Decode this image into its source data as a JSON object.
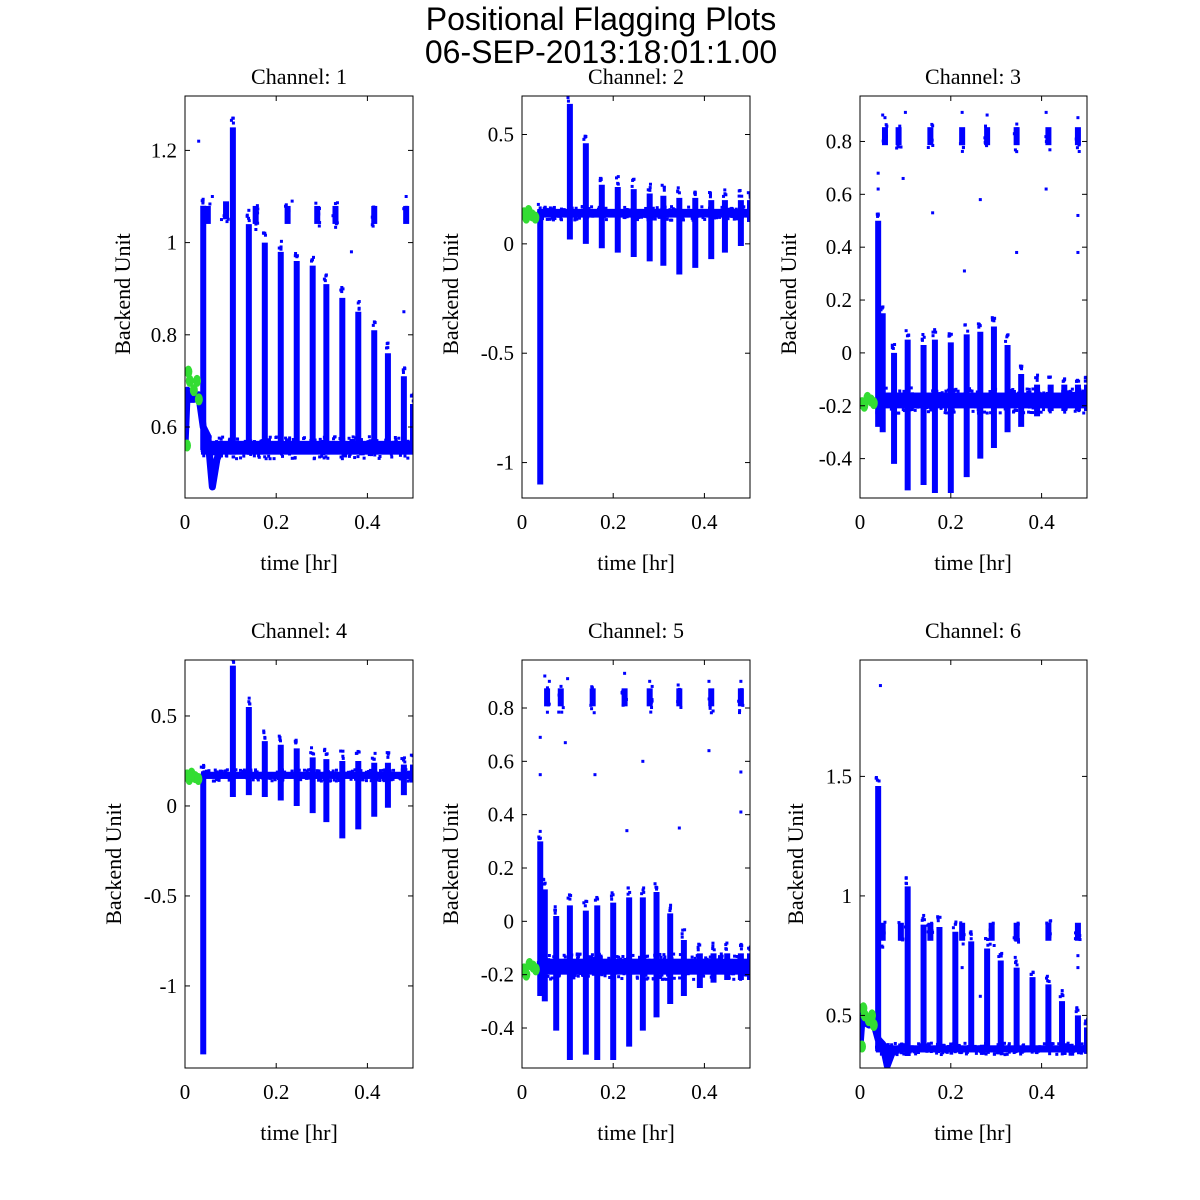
{
  "figure": {
    "title": "Positional Flagging Plots",
    "subtitle": "06-SEP-2013:18:01:1.00"
  },
  "colors": {
    "data": "#0000ff",
    "flagged": "#33dd33",
    "axis": "#000000",
    "background": "#ffffff"
  },
  "chart_data": [
    {
      "type": "scatter",
      "title": "Channel: 1",
      "xlabel": "time [hr]",
      "ylabel": "Backend Unit",
      "xlim": [
        0,
        0.5
      ],
      "ylim": [
        0.446,
        1.318
      ],
      "xticks": [
        0,
        0.2,
        0.4
      ],
      "xtick_labels": [
        "0",
        "0.2",
        "0.4"
      ],
      "yticks": [
        0.6,
        0.8,
        1,
        1.2
      ],
      "ytick_labels": [
        "0.6",
        "0.8",
        "1",
        "1.2"
      ],
      "baseline": {
        "x": [
          0.035,
          0.5
        ],
        "y": 0.555,
        "spread": 0.015
      },
      "early_curve": [
        [
          0,
          0.56
        ],
        [
          0.005,
          0.68
        ],
        [
          0.01,
          0.66
        ],
        [
          0.02,
          0.66
        ],
        [
          0.03,
          0.67
        ],
        [
          0.04,
          0.6
        ],
        [
          0.05,
          0.58
        ],
        [
          0.06,
          0.47
        ],
        [
          0.07,
          0.53
        ],
        [
          0.08,
          0.555
        ]
      ],
      "spikes": [
        [
          0.04,
          0.55,
          1.08
        ],
        [
          0.105,
          0.54,
          1.25
        ],
        [
          0.14,
          0.55,
          1.04
        ],
        [
          0.175,
          0.55,
          1.0
        ],
        [
          0.21,
          0.55,
          0.98
        ],
        [
          0.245,
          0.55,
          0.96
        ],
        [
          0.28,
          0.55,
          0.95
        ],
        [
          0.31,
          0.55,
          0.91
        ],
        [
          0.345,
          0.55,
          0.88
        ],
        [
          0.38,
          0.55,
          0.85
        ],
        [
          0.415,
          0.55,
          0.81
        ],
        [
          0.445,
          0.55,
          0.76
        ],
        [
          0.48,
          0.55,
          0.71
        ],
        [
          0.5,
          0.55,
          0.65
        ]
      ],
      "clusters": [
        [
          0.05,
          1.06
        ],
        [
          0.09,
          1.07
        ],
        [
          0.155,
          1.06
        ],
        [
          0.225,
          1.06
        ],
        [
          0.29,
          1.06
        ],
        [
          0.33,
          1.06
        ],
        [
          0.415,
          1.06
        ],
        [
          0.485,
          1.06
        ]
      ],
      "outliers": [
        [
          0.03,
          1.22
        ],
        [
          0.06,
          1.1
        ],
        [
          0.08,
          1.05
        ],
        [
          0.235,
          1.09
        ],
        [
          0.365,
          0.98
        ],
        [
          0.485,
          1.1
        ],
        [
          0.48,
          0.85
        ],
        [
          0.14,
          1.07
        ]
      ],
      "flagged": [
        [
          0,
          0.56
        ],
        [
          0.003,
          0.72
        ],
        [
          0.006,
          0.7
        ],
        [
          0.015,
          0.68
        ],
        [
          0.022,
          0.7
        ],
        [
          0.026,
          0.66
        ]
      ]
    },
    {
      "type": "scatter",
      "title": "Channel: 2",
      "xlabel": "time [hr]",
      "ylabel": "Backend Unit",
      "xlim": [
        0,
        0.5
      ],
      "ylim": [
        -1.162,
        0.676
      ],
      "xticks": [
        0,
        0.2,
        0.4
      ],
      "xtick_labels": [
        "0",
        "0.2",
        "0.4"
      ],
      "yticks": [
        -1,
        -0.5,
        0,
        0.5
      ],
      "ytick_labels": [
        "-1",
        "-0.5",
        "0",
        "0.5"
      ],
      "baseline": {
        "x": [
          0.035,
          0.5
        ],
        "y": 0.14,
        "spread": 0.02
      },
      "early_curve": [],
      "spikes": [
        [
          0.04,
          -1.1,
          0.14
        ],
        [
          0.105,
          0.02,
          0.64
        ],
        [
          0.14,
          -0.0,
          0.46
        ],
        [
          0.175,
          -0.02,
          0.27
        ],
        [
          0.21,
          -0.04,
          0.26
        ],
        [
          0.245,
          -0.06,
          0.25
        ],
        [
          0.28,
          -0.08,
          0.23
        ],
        [
          0.31,
          -0.1,
          0.22
        ],
        [
          0.345,
          -0.14,
          0.21
        ],
        [
          0.38,
          -0.11,
          0.21
        ],
        [
          0.415,
          -0.07,
          0.2
        ],
        [
          0.445,
          -0.04,
          0.2
        ],
        [
          0.48,
          -0.01,
          0.2
        ],
        [
          0.5,
          0.1,
          0.2
        ]
      ],
      "clusters": [],
      "outliers": [],
      "flagged": [
        [
          0,
          0.14
        ],
        [
          0.005,
          0.12
        ],
        [
          0.01,
          0.15
        ],
        [
          0.018,
          0.13
        ],
        [
          0.025,
          0.12
        ]
      ]
    },
    {
      "type": "scatter",
      "title": "Channel: 3",
      "xlabel": "time [hr]",
      "ylabel": "Backend Unit",
      "xlim": [
        0,
        0.5
      ],
      "ylim": [
        -0.549,
        0.972
      ],
      "xticks": [
        0,
        0.2,
        0.4
      ],
      "xtick_labels": [
        "0",
        "0.2",
        "0.4"
      ],
      "yticks": [
        -0.4,
        -0.2,
        0,
        0.2,
        0.4,
        0.6,
        0.8
      ],
      "ytick_labels": [
        "-0.4",
        "-0.2",
        "0",
        "0.2",
        "0.4",
        "0.6",
        "0.8"
      ],
      "baseline": {
        "x": [
          0.035,
          0.5
        ],
        "y": -0.18,
        "spread": 0.03
      },
      "early_curve": [],
      "spikes": [
        [
          0.04,
          -0.28,
          0.5
        ],
        [
          0.05,
          -0.3,
          0.15
        ],
        [
          0.075,
          -0.42,
          0.0
        ],
        [
          0.105,
          -0.52,
          0.05
        ],
        [
          0.14,
          -0.5,
          0.03
        ],
        [
          0.165,
          -0.53,
          0.05
        ],
        [
          0.2,
          -0.53,
          0.04
        ],
        [
          0.235,
          -0.47,
          0.07
        ],
        [
          0.265,
          -0.4,
          0.08
        ],
        [
          0.295,
          -0.36,
          0.1
        ],
        [
          0.325,
          -0.3,
          0.03
        ],
        [
          0.355,
          -0.28,
          -0.08
        ],
        [
          0.39,
          -0.24,
          -0.12
        ],
        [
          0.42,
          -0.22,
          -0.12
        ],
        [
          0.45,
          -0.22,
          -0.12
        ],
        [
          0.48,
          -0.22,
          -0.12
        ],
        [
          0.5,
          -0.22,
          -0.12
        ]
      ],
      "clusters": [
        [
          0.055,
          0.82
        ],
        [
          0.085,
          0.82
        ],
        [
          0.155,
          0.82
        ],
        [
          0.225,
          0.82
        ],
        [
          0.28,
          0.82
        ],
        [
          0.345,
          0.82
        ],
        [
          0.415,
          0.82
        ],
        [
          0.48,
          0.82
        ]
      ],
      "outliers": [
        [
          0.05,
          0.9
        ],
        [
          0.055,
          0.89
        ],
        [
          0.1,
          0.91
        ],
        [
          0.225,
          0.91
        ],
        [
          0.28,
          0.9
        ],
        [
          0.41,
          0.91
        ],
        [
          0.48,
          0.89
        ],
        [
          0.04,
          0.68
        ],
        [
          0.04,
          0.62
        ],
        [
          0.095,
          0.66
        ],
        [
          0.16,
          0.53
        ],
        [
          0.23,
          0.31
        ],
        [
          0.265,
          0.58
        ],
        [
          0.345,
          0.38
        ],
        [
          0.41,
          0.62
        ],
        [
          0.48,
          0.52
        ],
        [
          0.48,
          0.38
        ]
      ],
      "flagged": [
        [
          0,
          -0.19
        ],
        [
          0.005,
          -0.2
        ],
        [
          0.012,
          -0.17
        ],
        [
          0.02,
          -0.18
        ],
        [
          0.026,
          -0.19
        ]
      ]
    },
    {
      "type": "scatter",
      "title": "Channel: 4",
      "xlabel": "time [hr]",
      "ylabel": "Backend Unit",
      "xlim": [
        0,
        0.5
      ],
      "ylim": [
        -1.456,
        0.811
      ],
      "xticks": [
        0,
        0.2,
        0.4
      ],
      "xtick_labels": [
        "0",
        "0.2",
        "0.4"
      ],
      "yticks": [
        -1,
        -0.5,
        0,
        0.5
      ],
      "ytick_labels": [
        "-1",
        "-0.5",
        "0",
        "0.5"
      ],
      "baseline": {
        "x": [
          0.035,
          0.5
        ],
        "y": 0.17,
        "spread": 0.02
      },
      "early_curve": [],
      "spikes": [
        [
          0.04,
          -1.38,
          0.18
        ],
        [
          0.105,
          0.05,
          0.78
        ],
        [
          0.14,
          0.06,
          0.55
        ],
        [
          0.175,
          0.05,
          0.36
        ],
        [
          0.21,
          0.03,
          0.34
        ],
        [
          0.245,
          0.0,
          0.32
        ],
        [
          0.28,
          -0.04,
          0.27
        ],
        [
          0.31,
          -0.09,
          0.26
        ],
        [
          0.345,
          -0.18,
          0.25
        ],
        [
          0.38,
          -0.13,
          0.25
        ],
        [
          0.415,
          -0.06,
          0.24
        ],
        [
          0.445,
          -0.01,
          0.24
        ],
        [
          0.48,
          0.06,
          0.23
        ],
        [
          0.5,
          0.13,
          0.23
        ]
      ],
      "clusters": [],
      "outliers": [],
      "flagged": [
        [
          0,
          0.17
        ],
        [
          0.005,
          0.15
        ],
        [
          0.01,
          0.18
        ],
        [
          0.018,
          0.16
        ],
        [
          0.025,
          0.15
        ]
      ]
    },
    {
      "type": "scatter",
      "title": "Channel: 5",
      "xlabel": "time [hr]",
      "ylabel": "Backend Unit",
      "xlim": [
        0,
        0.5
      ],
      "ylim": [
        -0.55,
        0.98
      ],
      "xticks": [
        0,
        0.2,
        0.4
      ],
      "xtick_labels": [
        "0",
        "0.2",
        "0.4"
      ],
      "yticks": [
        -0.4,
        -0.2,
        0,
        0.2,
        0.4,
        0.6,
        0.8
      ],
      "ytick_labels": [
        "-0.4",
        "-0.2",
        "0",
        "0.2",
        "0.4",
        "0.6",
        "0.8"
      ],
      "baseline": {
        "x": [
          0.035,
          0.5
        ],
        "y": -0.17,
        "spread": 0.03
      },
      "early_curve": [],
      "spikes": [
        [
          0.04,
          -0.28,
          0.3
        ],
        [
          0.05,
          -0.3,
          0.12
        ],
        [
          0.075,
          -0.41,
          0.02
        ],
        [
          0.105,
          -0.52,
          0.06
        ],
        [
          0.14,
          -0.5,
          0.04
        ],
        [
          0.165,
          -0.52,
          0.06
        ],
        [
          0.2,
          -0.52,
          0.07
        ],
        [
          0.235,
          -0.47,
          0.09
        ],
        [
          0.265,
          -0.41,
          0.09
        ],
        [
          0.295,
          -0.36,
          0.11
        ],
        [
          0.325,
          -0.31,
          0.03
        ],
        [
          0.355,
          -0.28,
          -0.07
        ],
        [
          0.39,
          -0.25,
          -0.12
        ],
        [
          0.42,
          -0.23,
          -0.12
        ],
        [
          0.45,
          -0.22,
          -0.12
        ],
        [
          0.48,
          -0.22,
          -0.12
        ],
        [
          0.5,
          -0.22,
          -0.12
        ]
      ],
      "clusters": [
        [
          0.055,
          0.84
        ],
        [
          0.085,
          0.84
        ],
        [
          0.155,
          0.84
        ],
        [
          0.225,
          0.84
        ],
        [
          0.28,
          0.84
        ],
        [
          0.345,
          0.84
        ],
        [
          0.415,
          0.84
        ],
        [
          0.48,
          0.84
        ]
      ],
      "outliers": [
        [
          0.05,
          0.92
        ],
        [
          0.06,
          0.9
        ],
        [
          0.1,
          0.91
        ],
        [
          0.225,
          0.93
        ],
        [
          0.28,
          0.9
        ],
        [
          0.41,
          0.9
        ],
        [
          0.48,
          0.9
        ],
        [
          0.04,
          0.69
        ],
        [
          0.04,
          0.55
        ],
        [
          0.095,
          0.67
        ],
        [
          0.16,
          0.55
        ],
        [
          0.23,
          0.34
        ],
        [
          0.265,
          0.6
        ],
        [
          0.345,
          0.35
        ],
        [
          0.41,
          0.64
        ],
        [
          0.48,
          0.56
        ],
        [
          0.48,
          0.41
        ]
      ],
      "flagged": [
        [
          0,
          -0.18
        ],
        [
          0.005,
          -0.2
        ],
        [
          0.012,
          -0.16
        ],
        [
          0.02,
          -0.17
        ],
        [
          0.026,
          -0.18
        ]
      ]
    },
    {
      "type": "scatter",
      "title": "Channel: 6",
      "xlabel": "time [hr]",
      "ylabel": "Backend Unit",
      "xlim": [
        0,
        0.5
      ],
      "ylim": [
        0.28,
        1.987
      ],
      "xticks": [
        0,
        0.2,
        0.4
      ],
      "xtick_labels": [
        "0",
        "0.2",
        "0.4"
      ],
      "yticks": [
        0.5,
        1,
        1.5
      ],
      "ytick_labels": [
        "0.5",
        "1",
        "1.5"
      ],
      "baseline": {
        "x": [
          0.035,
          0.5
        ],
        "y": 0.36,
        "spread": 0.015
      },
      "early_curve": [
        [
          0,
          0.37
        ],
        [
          0.005,
          0.5
        ],
        [
          0.01,
          0.47
        ],
        [
          0.02,
          0.46
        ],
        [
          0.03,
          0.47
        ],
        [
          0.04,
          0.4
        ],
        [
          0.05,
          0.38
        ],
        [
          0.06,
          0.29
        ],
        [
          0.07,
          0.34
        ],
        [
          0.08,
          0.36
        ]
      ],
      "spikes": [
        [
          0.04,
          0.35,
          1.46
        ],
        [
          0.105,
          0.33,
          1.04
        ],
        [
          0.14,
          0.35,
          0.88
        ],
        [
          0.175,
          0.35,
          0.87
        ],
        [
          0.21,
          0.35,
          0.85
        ],
        [
          0.245,
          0.35,
          0.81
        ],
        [
          0.28,
          0.35,
          0.78
        ],
        [
          0.31,
          0.35,
          0.73
        ],
        [
          0.345,
          0.35,
          0.7
        ],
        [
          0.38,
          0.35,
          0.66
        ],
        [
          0.415,
          0.35,
          0.63
        ],
        [
          0.445,
          0.35,
          0.56
        ],
        [
          0.48,
          0.35,
          0.5
        ],
        [
          0.5,
          0.35,
          0.45
        ]
      ],
      "clusters": [
        [
          0.05,
          0.85
        ],
        [
          0.09,
          0.85
        ],
        [
          0.155,
          0.85
        ],
        [
          0.225,
          0.85
        ],
        [
          0.29,
          0.85
        ],
        [
          0.345,
          0.85
        ],
        [
          0.415,
          0.85
        ],
        [
          0.48,
          0.85
        ]
      ],
      "outliers": [
        [
          0.045,
          1.88
        ],
        [
          0.04,
          1.3
        ],
        [
          0.1,
          0.87
        ],
        [
          0.225,
          0.7
        ],
        [
          0.265,
          0.58
        ],
        [
          0.48,
          0.75
        ],
        [
          0.48,
          0.7
        ]
      ],
      "flagged": [
        [
          0,
          0.37
        ],
        [
          0.003,
          0.53
        ],
        [
          0.006,
          0.5
        ],
        [
          0.015,
          0.48
        ],
        [
          0.022,
          0.5
        ],
        [
          0.026,
          0.46
        ]
      ]
    }
  ]
}
